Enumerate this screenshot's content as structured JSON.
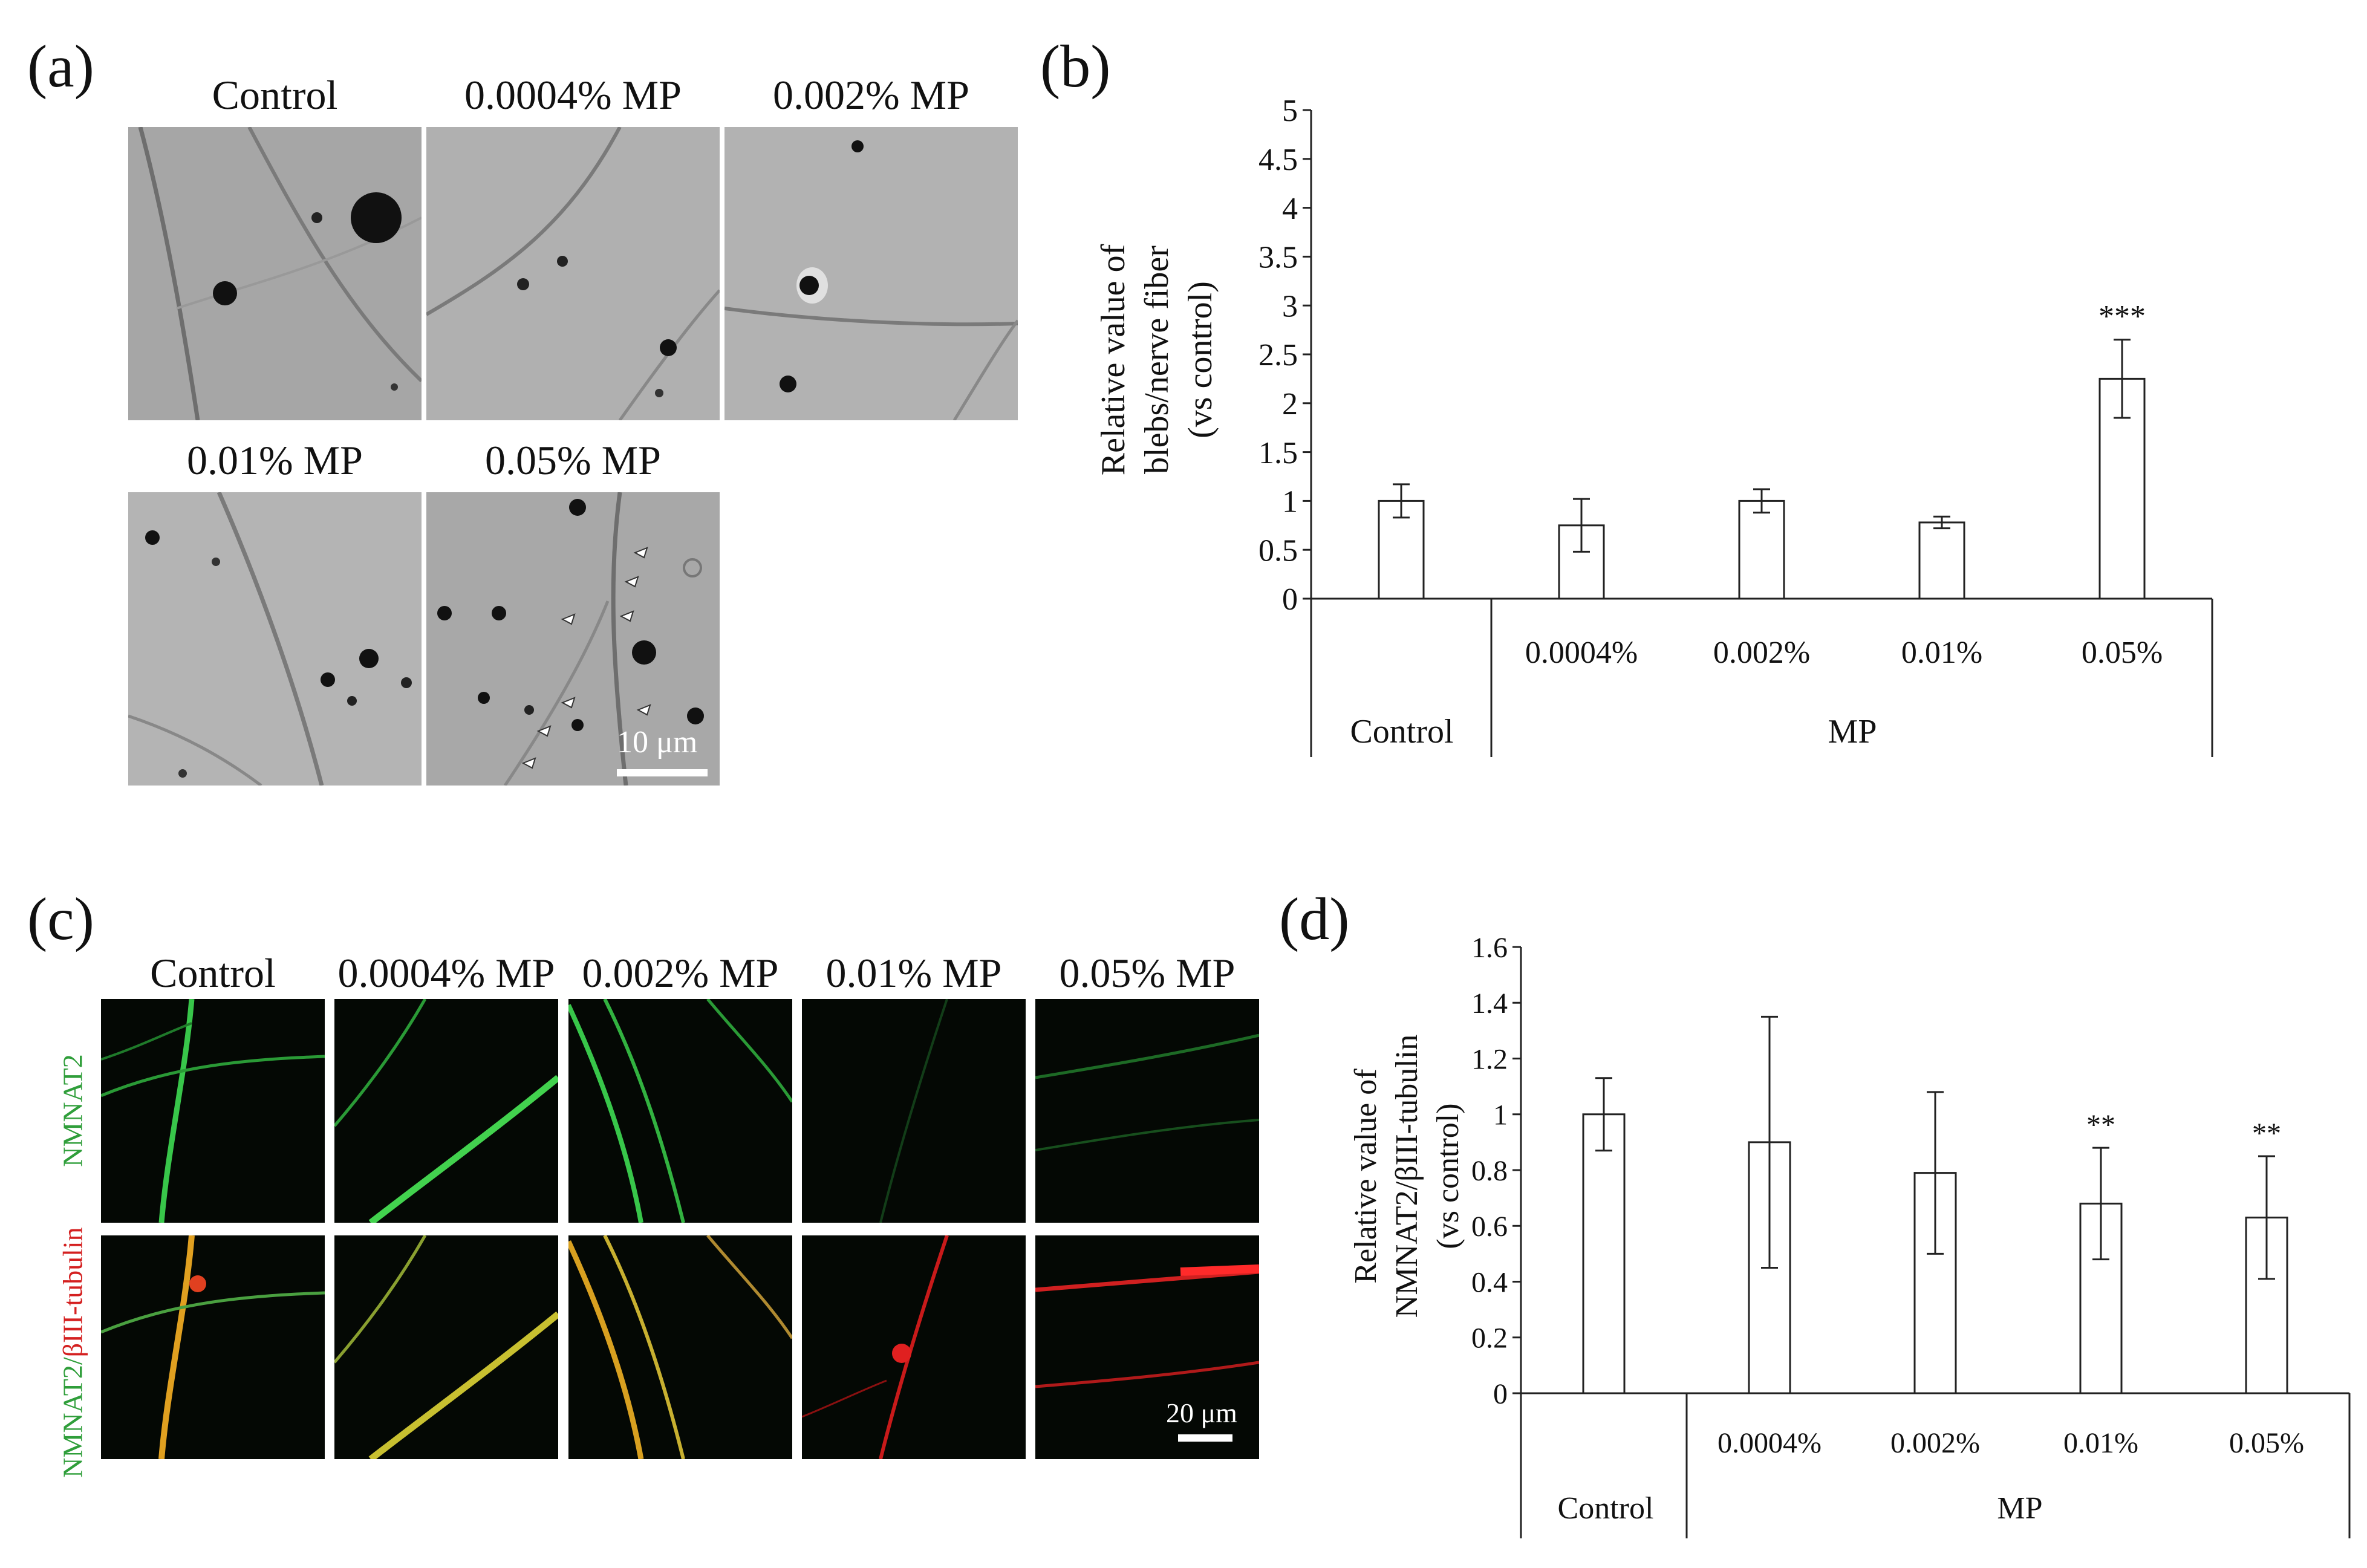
{
  "panels": {
    "a": {
      "letter": "(a)",
      "conditions": [
        "Control",
        "0.0004% MP",
        "0.002% MP",
        "0.01% MP",
        "0.05% MP"
      ],
      "scale_bar": "10 μm"
    },
    "b": {
      "letter": "(b)",
      "ylabel_lines": [
        "Relative value of",
        "blebs/nerve fiber",
        "(vs  control)"
      ],
      "group_labels": [
        "Control",
        "MP"
      ]
    },
    "c": {
      "letter": "(c)",
      "conditions": [
        "Control",
        "0.0004% MP",
        "0.002% MP",
        "0.01% MP",
        "0.05% MP"
      ],
      "row_label_top": "NMNAT2",
      "row_label_bottom_green": "NMNAT2/",
      "row_label_bottom_red": "βIII-tubulin",
      "scale_bar": "20 μm"
    },
    "d": {
      "letter": "(d)",
      "ylabel_lines": [
        "Relative value of",
        "NMNAT2/βIII-tubulin",
        "(vs control)"
      ],
      "group_labels": [
        "Control",
        "MP"
      ]
    }
  },
  "chart_data": [
    {
      "id": "b",
      "type": "bar",
      "categories": [
        "Control",
        "0.0004%",
        "0.002%",
        "0.01%",
        "0.05%"
      ],
      "values": [
        1.0,
        0.75,
        1.0,
        0.78,
        2.25
      ],
      "errors": [
        0.17,
        0.27,
        0.12,
        0.06,
        0.4
      ],
      "significance": [
        "",
        "",
        "",
        "",
        "***"
      ],
      "ylim": [
        0,
        5
      ],
      "yticks": [
        "0",
        "0.5",
        "1",
        "1.5",
        "2",
        "2.5",
        "3",
        "3.5",
        "4",
        "4.5",
        "5"
      ],
      "ylabel": "Relative value of blebs/nerve fiber (vs  control)",
      "xlabel": ""
    },
    {
      "id": "d",
      "type": "bar",
      "categories": [
        "Control",
        "0.0004%",
        "0.002%",
        "0.01%",
        "0.05%"
      ],
      "values": [
        1.0,
        0.9,
        0.79,
        0.68,
        0.63
      ],
      "errors": [
        0.13,
        0.45,
        0.29,
        0.2,
        0.22
      ],
      "significance": [
        "",
        "",
        "",
        "**",
        "**"
      ],
      "ylim": [
        0,
        1.6
      ],
      "yticks": [
        "0",
        "0.2",
        "0.4",
        "0.6",
        "0.8",
        "1",
        "1.2",
        "1.4",
        "1.6"
      ],
      "ylabel": "Relative value of NMNAT2/βIII-tubulin (vs control)",
      "xlabel": ""
    }
  ],
  "colors": {
    "green": "#2f9e3a",
    "red": "#d42020",
    "axis": "#222222"
  }
}
